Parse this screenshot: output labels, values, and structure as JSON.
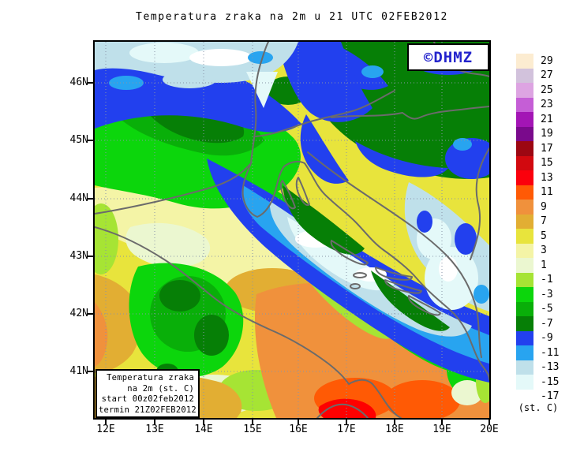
{
  "title": "Temperatura zraka na 2m u 21 UTC 02FEB2012",
  "logo": {
    "text": "©DHMZ",
    "color": "#2323cc"
  },
  "axes": {
    "lat": [
      "46N",
      "45N",
      "44N",
      "43N",
      "42N",
      "41N"
    ],
    "lon": [
      "12E",
      "13E",
      "14E",
      "15E",
      "16E",
      "17E",
      "18E",
      "19E",
      "20E"
    ]
  },
  "legend": {
    "units": "(st. C)",
    "entries": [
      {
        "label": "29",
        "color": "#fcecd1"
      },
      {
        "label": "27",
        "color": "#d2c2dc"
      },
      {
        "label": "25",
        "color": "#dda4e2"
      },
      {
        "label": "23",
        "color": "#c55ed6"
      },
      {
        "label": "21",
        "color": "#a315b5"
      },
      {
        "label": "19",
        "color": "#7a0a8c"
      },
      {
        "label": "17",
        "color": "#9c0712"
      },
      {
        "label": "15",
        "color": "#d2090f"
      },
      {
        "label": "13",
        "color": "#fb000c"
      },
      {
        "label": "11",
        "color": "#ff5a05"
      },
      {
        "label": "9",
        "color": "#f0913c"
      },
      {
        "label": "7",
        "color": "#e2ae33"
      },
      {
        "label": "5",
        "color": "#e8e43c"
      },
      {
        "label": "3",
        "color": "#f4f4a6"
      },
      {
        "label": "1",
        "color": "#ebf7d0"
      },
      {
        "label": "-1",
        "color": "#a6e434"
      },
      {
        "label": "-3",
        "color": "#0cd60c"
      },
      {
        "label": "-5",
        "color": "#09af09"
      },
      {
        "label": "-7",
        "color": "#067f06"
      },
      {
        "label": "-9",
        "color": "#2240ee"
      },
      {
        "label": "-11",
        "color": "#28a4f0"
      },
      {
        "label": "-13",
        "color": "#bfe0ea"
      },
      {
        "label": "-15",
        "color": "#e4f9f9"
      },
      {
        "label": "-17",
        "color": "#ffffff"
      }
    ]
  },
  "inset": {
    "lines": [
      "Temperatura zraka",
      "na 2m (st. C)",
      "start 00z02feb2012",
      "termin 21Z02FEB2012"
    ]
  }
}
